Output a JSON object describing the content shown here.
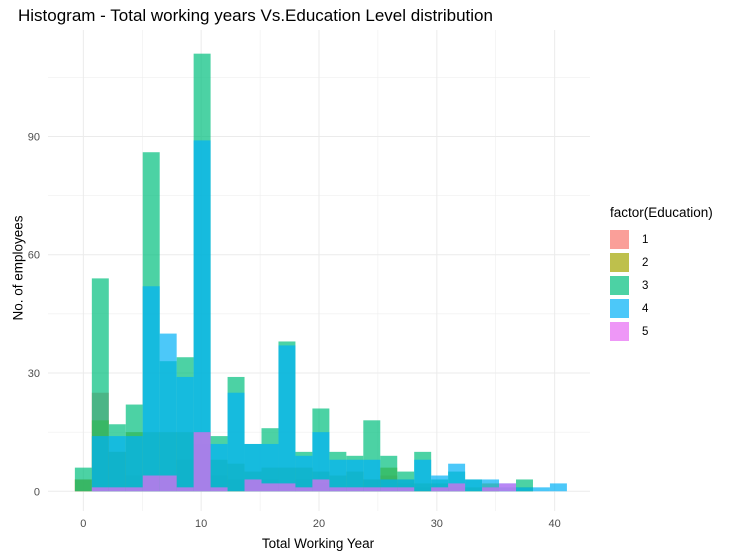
{
  "chart_data": {
    "type": "bar",
    "subtype": "overlaid histogram",
    "title": "Histogram - Total working years Vs.Education Level distribution",
    "xlabel": "Total Working Year",
    "ylabel": "No. of employees",
    "xlim": [
      -3,
      43
    ],
    "ylim": [
      -5,
      117
    ],
    "x_ticks": [
      0,
      10,
      20,
      30,
      40
    ],
    "y_ticks": [
      0,
      30,
      60,
      90
    ],
    "grid": true,
    "bin_width": 1.44,
    "bin_centers": [
      0,
      1.44,
      2.88,
      4.32,
      5.76,
      7.2,
      8.64,
      10.08,
      11.52,
      12.96,
      14.4,
      15.84,
      17.28,
      18.72,
      20.16,
      21.6,
      23.04,
      24.48,
      25.92,
      27.36,
      28.8,
      30.24,
      31.68,
      33.12,
      34.56,
      36.0,
      37.44,
      38.88,
      40.32
    ],
    "legend": {
      "title": "factor(Education)",
      "position": "right"
    },
    "series": [
      {
        "name": "1",
        "color": "#F8766D",
        "values": [
          3,
          25,
          10,
          4,
          4,
          4,
          8,
          12,
          4,
          3,
          3,
          3,
          2,
          3,
          2,
          1,
          1,
          3,
          4,
          2,
          1,
          1,
          1,
          0,
          1,
          0,
          0,
          0,
          0
        ]
      },
      {
        "name": "2",
        "color": "#A3A500",
        "values": [
          3,
          18,
          10,
          15,
          15,
          15,
          15,
          15,
          8,
          7,
          5,
          6,
          6,
          6,
          5,
          4,
          5,
          3,
          6,
          3,
          2,
          2,
          2,
          1,
          2,
          0,
          1,
          0,
          0
        ]
      },
      {
        "name": "3",
        "color": "#00BF7D",
        "values": [
          6,
          54,
          17,
          22,
          86,
          33,
          34,
          111,
          14,
          29,
          12,
          16,
          38,
          10,
          21,
          10,
          9,
          18,
          9,
          5,
          10,
          3,
          5,
          3,
          1,
          1,
          3,
          0,
          0
        ]
      },
      {
        "name": "4",
        "color": "#00B0F6",
        "values": [
          0,
          14,
          14,
          14,
          52,
          40,
          29,
          89,
          12,
          25,
          12,
          12,
          37,
          9,
          15,
          8,
          8,
          8,
          3,
          3,
          8,
          4,
          7,
          3,
          3,
          2,
          1,
          1,
          2
        ]
      },
      {
        "name": "5",
        "color": "#E76BF3",
        "values": [
          0,
          1,
          1,
          1,
          4,
          4,
          1,
          15,
          1,
          0,
          3,
          2,
          2,
          1,
          3,
          1,
          1,
          1,
          1,
          1,
          0,
          1,
          2,
          0,
          1,
          2,
          0,
          0,
          0
        ]
      }
    ]
  }
}
